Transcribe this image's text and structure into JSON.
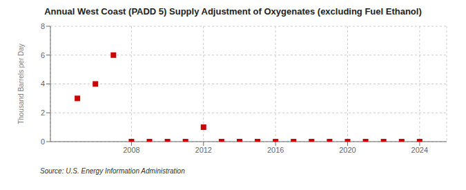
{
  "chart_data": {
    "type": "scatter",
    "title": "Annual West Coast (PADD 5) Supply Adjustment of Oxygenates (excluding Fuel Ethanol)",
    "ylabel": "Thousand Barrels per Day",
    "source": "Source: U.S. Energy Information Administration",
    "x": [
      2005,
      2006,
      2007,
      2008,
      2009,
      2010,
      2011,
      2012,
      2013,
      2014,
      2015,
      2016,
      2017,
      2018,
      2019,
      2020,
      2021,
      2022,
      2023,
      2024
    ],
    "values": [
      3,
      4,
      6,
      0,
      0,
      0,
      0,
      1,
      0,
      0,
      0,
      0,
      0,
      0,
      0,
      0,
      0,
      0,
      0,
      0
    ],
    "color": "#cc0000",
    "marker": "square",
    "xlim": [
      2003.5,
      2025.5
    ],
    "ylim": [
      0,
      8
    ],
    "xticks": [
      2008,
      2012,
      2016,
      2020,
      2024
    ],
    "yticks": [
      0,
      2,
      4,
      6,
      8
    ],
    "grid": true
  }
}
